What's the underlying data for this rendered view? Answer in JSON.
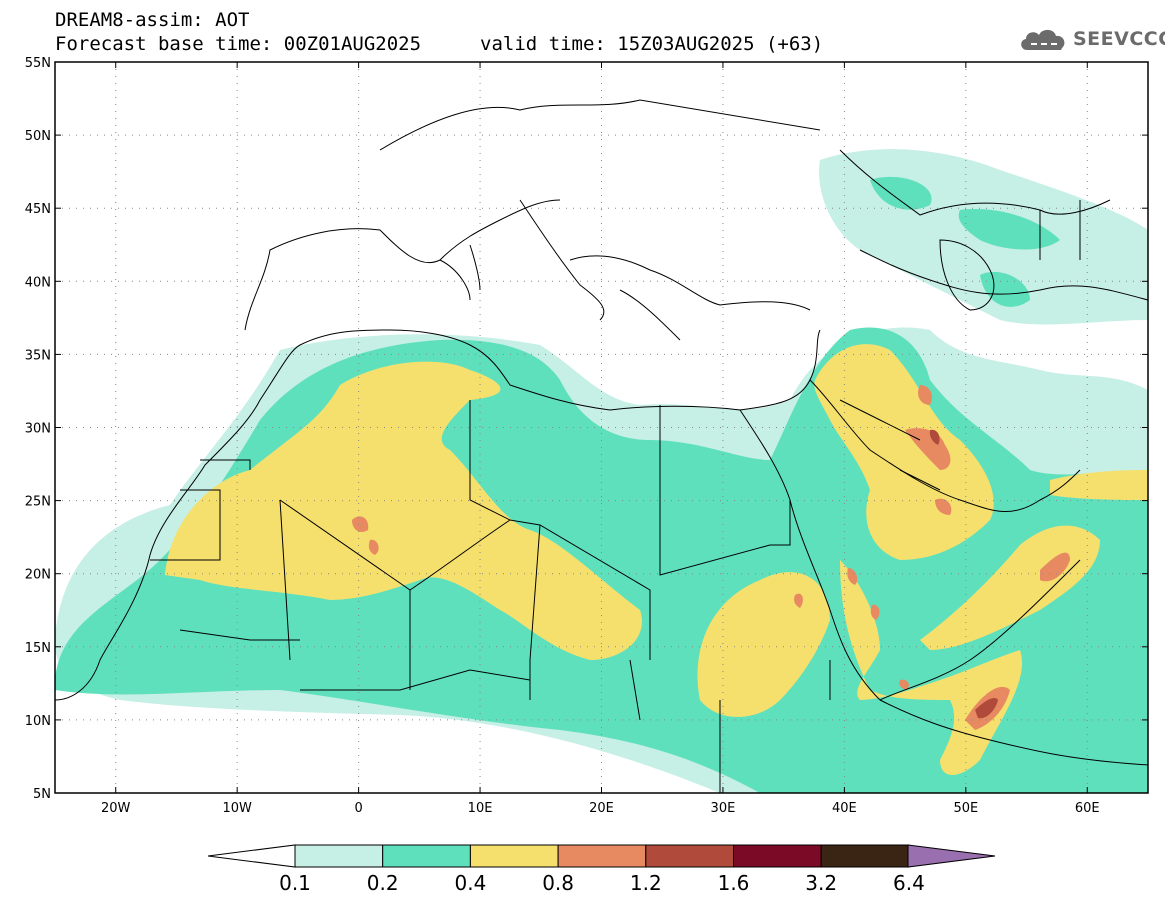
{
  "header": {
    "line1": "DREAM8-assim: AOT",
    "line2": "Forecast base time: 00Z01AUG2025",
    "valid": "valid time: 15Z03AUG2025 (+63)"
  },
  "logo": {
    "text": "SEEVCCC",
    "icon": "cloud-icon"
  },
  "map": {
    "lon_range": [
      -25,
      65
    ],
    "lat_range": [
      5,
      55
    ],
    "lat_ticks": [
      "5N",
      "10N",
      "15N",
      "20N",
      "25N",
      "30N",
      "35N",
      "40N",
      "45N",
      "50N",
      "55N"
    ],
    "lon_ticks": [
      "20W",
      "10W",
      "0",
      "10E",
      "20E",
      "30E",
      "40E",
      "50E",
      "60E"
    ],
    "grid": "dotted"
  },
  "colorbar": {
    "labels": [
      "0.1",
      "0.2",
      "0.4",
      "0.8",
      "1.2",
      "1.6",
      "3.2",
      "6.4"
    ],
    "colors": [
      "#c6efe6",
      "#5fe0bd",
      "#f5e06e",
      "#e78a62",
      "#b04a3a",
      "#7a0a25",
      "#3a2414",
      "#9a6fb0"
    ],
    "under_color": "#ffffff"
  }
}
